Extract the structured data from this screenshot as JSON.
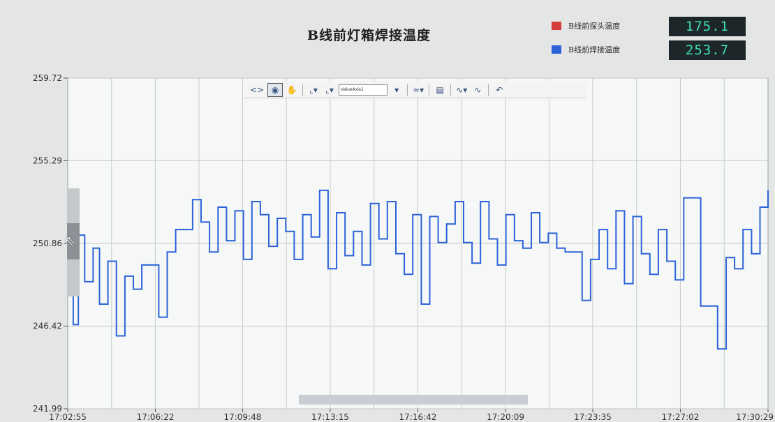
{
  "title": "B线前灯箱焊接温度",
  "legend": [
    {
      "label": "B线前探头温度",
      "value": "175.1",
      "color": "#d43b3b"
    },
    {
      "label": "B线前焊接温度",
      "value": "253.7",
      "color": "#2c63d9"
    }
  ],
  "toolbar": {
    "select_value": "ValueAxis1",
    "buttons": [
      "pan-arrows-icon",
      "zoom-select-icon",
      "hand-icon",
      "axis-x-icon",
      "axis-y-icon",
      "chart-type-icon",
      "legend-icon",
      "line-style-icon",
      "line-icon",
      "undo-icon"
    ]
  },
  "chart_data": {
    "type": "line",
    "title": "B线前灯箱焊接温度",
    "y_ticks": [
      "259.72",
      "255.29",
      "250.86",
      "246.42",
      "241.99"
    ],
    "x_ticks": [
      "17:02:55",
      "17:06:22",
      "17:09:48",
      "17:13:15",
      "17:16:42",
      "17:20:09",
      "17:23:35",
      "17:27:02",
      "17:30:29"
    ],
    "ylim": [
      241.99,
      259.72
    ],
    "xlim": [
      "17:02:55",
      "17:30:29"
    ],
    "grid": true,
    "series": [
      {
        "name": "B线前焊接温度",
        "color": "#2c63d9",
        "x": [
          "17:02:55",
          "17:03:08",
          "17:03:20",
          "17:03:35",
          "17:03:55",
          "17:04:10",
          "17:04:30",
          "17:04:50",
          "17:05:10",
          "17:05:30",
          "17:05:50",
          "17:06:10",
          "17:06:30",
          "17:06:50",
          "17:07:10",
          "17:07:30",
          "17:07:50",
          "17:08:10",
          "17:08:30",
          "17:08:50",
          "17:09:10",
          "17:09:30",
          "17:09:50",
          "17:10:10",
          "17:10:30",
          "17:10:50",
          "17:11:10",
          "17:11:30",
          "17:11:50",
          "17:12:10",
          "17:12:30",
          "17:12:50",
          "17:13:10",
          "17:13:30",
          "17:13:50",
          "17:14:10",
          "17:14:30",
          "17:14:50",
          "17:15:10",
          "17:15:30",
          "17:15:50",
          "17:16:10",
          "17:16:30",
          "17:16:50",
          "17:17:10",
          "17:17:30",
          "17:17:50",
          "17:18:10",
          "17:18:30",
          "17:18:50",
          "17:19:10",
          "17:19:30",
          "17:19:50",
          "17:20:10",
          "17:20:30",
          "17:20:50",
          "17:21:10",
          "17:21:30",
          "17:21:50",
          "17:22:10",
          "17:22:30",
          "17:22:50",
          "17:23:10",
          "17:23:30",
          "17:23:50",
          "17:24:10",
          "17:24:30",
          "17:24:50",
          "17:25:10",
          "17:25:30",
          "17:25:50",
          "17:26:10",
          "17:26:30",
          "17:26:50",
          "17:27:10",
          "17:27:30",
          "17:27:50",
          "17:28:10",
          "17:28:30",
          "17:28:50",
          "17:29:10",
          "17:29:30",
          "17:29:50",
          "17:30:10",
          "17:30:29"
        ],
        "y": [
          249.3,
          246.5,
          251.3,
          248.8,
          250.6,
          247.6,
          249.9,
          245.9,
          249.1,
          248.4,
          249.7,
          249.7,
          246.9,
          250.4,
          251.6,
          251.6,
          253.2,
          252.0,
          250.4,
          252.8,
          251.0,
          252.6,
          250.0,
          253.1,
          252.4,
          250.7,
          252.2,
          251.5,
          250.0,
          252.4,
          251.2,
          253.7,
          249.5,
          252.5,
          250.2,
          251.5,
          249.7,
          253.0,
          251.1,
          253.1,
          250.3,
          249.2,
          252.4,
          247.6,
          252.3,
          250.9,
          251.9,
          253.1,
          250.9,
          249.8,
          253.1,
          251.1,
          249.7,
          252.4,
          251.0,
          250.6,
          252.5,
          250.9,
          251.4,
          250.6,
          250.4,
          250.4,
          247.8,
          250.0,
          251.6,
          249.5,
          252.6,
          248.7,
          252.3,
          250.3,
          249.2,
          251.6,
          249.9,
          248.9,
          253.3,
          253.3,
          247.5,
          247.5,
          245.2,
          250.1,
          249.5,
          251.6,
          250.3,
          252.8,
          253.7
        ]
      }
    ]
  }
}
